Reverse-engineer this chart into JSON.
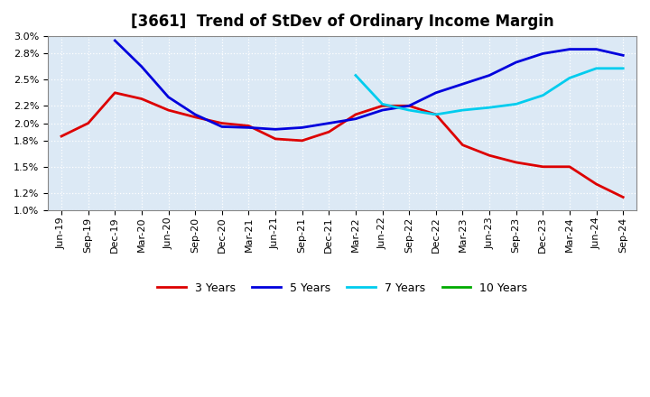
{
  "title": "[3661]  Trend of StDev of Ordinary Income Margin",
  "background_color": "#ffffff",
  "plot_bg_color": "#dce9f5",
  "grid_color": "#ffffff",
  "ylim": [
    0.01,
    0.03
  ],
  "yticks": [
    0.01,
    0.012,
    0.015,
    0.018,
    0.02,
    0.022,
    0.025,
    0.028,
    0.03
  ],
  "series": {
    "3 Years": {
      "color": "#dd0000",
      "x_idx": [
        0,
        1,
        2,
        3,
        4,
        5,
        6,
        7,
        8,
        9,
        10,
        11,
        12,
        13,
        14,
        15,
        16,
        17,
        18,
        19,
        20,
        21
      ],
      "y": [
        0.0185,
        0.02,
        0.0235,
        0.0228,
        0.0215,
        0.0207,
        0.02,
        0.0197,
        0.0182,
        0.018,
        0.019,
        0.021,
        0.022,
        0.022,
        0.021,
        0.0175,
        0.0163,
        0.0155,
        0.015,
        0.015,
        0.013,
        0.0115
      ]
    },
    "5 Years": {
      "color": "#0000dd",
      "x_idx": [
        2,
        3,
        4,
        5,
        6,
        7,
        8,
        9,
        10,
        11,
        12,
        13,
        14,
        15,
        16,
        17,
        18,
        19,
        20,
        21
      ],
      "y": [
        0.0295,
        0.0265,
        0.023,
        0.021,
        0.0196,
        0.0195,
        0.0193,
        0.0195,
        0.02,
        0.0205,
        0.0215,
        0.022,
        0.0235,
        0.0245,
        0.0255,
        0.027,
        0.028,
        0.0285,
        0.0285,
        0.0278
      ]
    },
    "7 Years": {
      "color": "#00ccee",
      "x_idx": [
        11,
        12,
        13,
        14,
        15,
        16,
        17,
        18,
        19,
        20,
        21
      ],
      "y": [
        0.0255,
        0.0222,
        0.0215,
        0.021,
        0.0215,
        0.0218,
        0.0222,
        0.0232,
        0.0252,
        0.0263,
        0.0263
      ]
    },
    "10 Years": {
      "color": "#00aa00",
      "x_idx": [],
      "y": []
    }
  },
  "xtick_labels": [
    "Jun-19",
    "Sep-19",
    "Dec-19",
    "Mar-20",
    "Jun-20",
    "Sep-20",
    "Dec-20",
    "Mar-21",
    "Jun-21",
    "Sep-21",
    "Dec-21",
    "Mar-22",
    "Jun-22",
    "Sep-22",
    "Dec-22",
    "Mar-23",
    "Jun-23",
    "Sep-23",
    "Dec-23",
    "Mar-24",
    "Jun-24",
    "Sep-24"
  ],
  "legend_order": [
    "3 Years",
    "5 Years",
    "7 Years",
    "10 Years"
  ],
  "title_fontsize": 12,
  "tick_fontsize": 8,
  "legend_fontsize": 9,
  "linewidth": 2.0
}
